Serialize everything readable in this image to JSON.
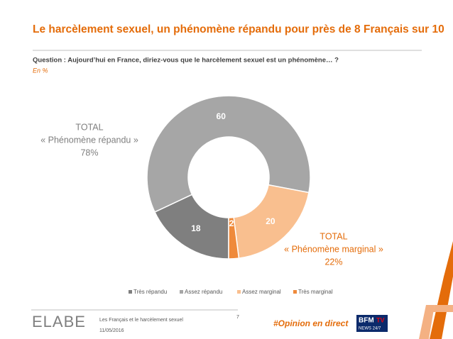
{
  "chart_data": {
    "type": "pie",
    "title": "Le harcèlement sexuel, un phénomène répandu pour près de 8 Français sur 10",
    "subtitle": "Question : Aujourd’hui en France, diriez-vous que le harcèlement sexuel est un phénomène… ?",
    "unit_note": "En %",
    "categories": [
      "Très répandu",
      "Assez répandu",
      "Assez marginal",
      "Très marginal"
    ],
    "values": [
      18,
      60,
      20,
      2
    ],
    "colors": [
      "#7f7f7f",
      "#a6a6a6",
      "#f9bf8f",
      "#ef8a3b"
    ],
    "annotations": [
      "TOTAL",
      "« Phénomène répandu »",
      "78%",
      "TOTAL",
      "« Phénomène marginal »",
      "22%"
    ],
    "legend": "bottom"
  },
  "footer": {
    "study": "Les Français et le harcèlement sexuel",
    "date": "11/05/2016",
    "page": "7",
    "hashtag": "#Opinion en direct",
    "logo": "ELABE",
    "broadcaster": "BFM",
    "broadcaster_tv": "TV",
    "tagline": "NEWS 24/7"
  }
}
